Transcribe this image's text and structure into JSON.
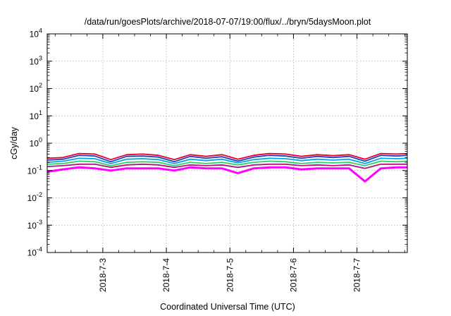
{
  "chart_data": {
    "type": "line",
    "title": "/data/run/goesPlots/archive/2018-07-07/19:00/flux/../bryn/5daysMoon.plot",
    "xlabel": "Coordinated Universal Time (UTC)",
    "ylabel": "cGy/day",
    "y_scale": "log",
    "ylim": [
      0.0001,
      10000
    ],
    "xlim": [
      "2018-07-02T03:00",
      "2018-07-07T19:00"
    ],
    "grid": true,
    "legend": "none",
    "x_ticks": [
      "2018-7-3",
      "2018-7-4",
      "2018-7-5",
      "2018-7-6",
      "2018-7-7"
    ],
    "y_ticks": [
      {
        "value": 0.0001,
        "base": "10",
        "exp": "-4"
      },
      {
        "value": 0.001,
        "base": "10",
        "exp": "-3"
      },
      {
        "value": 0.01,
        "base": "10",
        "exp": "-2"
      },
      {
        "value": 0.1,
        "base": "10",
        "exp": "-1"
      },
      {
        "value": 1,
        "base": "10",
        "exp": "0"
      },
      {
        "value": 10,
        "base": "10",
        "exp": "1"
      },
      {
        "value": 100,
        "base": "10",
        "exp": "2"
      },
      {
        "value": 1000,
        "base": "10",
        "exp": "3"
      },
      {
        "value": 10000,
        "base": "10",
        "exp": "4"
      }
    ],
    "x": [
      "2018-07-02T03:00",
      "2018-07-02T09:00",
      "2018-07-02T15:00",
      "2018-07-02T21:00",
      "2018-07-03T03:00",
      "2018-07-03T09:00",
      "2018-07-03T15:00",
      "2018-07-03T21:00",
      "2018-07-04T03:00",
      "2018-07-04T09:00",
      "2018-07-04T15:00",
      "2018-07-04T21:00",
      "2018-07-05T03:00",
      "2018-07-05T09:00",
      "2018-07-05T15:00",
      "2018-07-05T21:00",
      "2018-07-06T03:00",
      "2018-07-06T09:00",
      "2018-07-06T15:00",
      "2018-07-06T21:00",
      "2018-07-07T03:00",
      "2018-07-07T09:00",
      "2018-07-07T15:00",
      "2018-07-07T19:00"
    ],
    "series": [
      {
        "color": "#e4002b",
        "values": [
          0.28,
          0.3,
          0.42,
          0.4,
          0.25,
          0.38,
          0.4,
          0.36,
          0.25,
          0.38,
          0.33,
          0.38,
          0.26,
          0.36,
          0.42,
          0.4,
          0.33,
          0.38,
          0.35,
          0.38,
          0.26,
          0.42,
          0.4,
          0.42
        ]
      },
      {
        "color": "#1f3fb8",
        "values": [
          0.24,
          0.26,
          0.36,
          0.34,
          0.21,
          0.33,
          0.34,
          0.31,
          0.21,
          0.33,
          0.28,
          0.32,
          0.22,
          0.31,
          0.36,
          0.34,
          0.28,
          0.33,
          0.3,
          0.33,
          0.22,
          0.36,
          0.34,
          0.36
        ]
      },
      {
        "color": "#00a6e6",
        "values": [
          0.2,
          0.22,
          0.28,
          0.27,
          0.18,
          0.26,
          0.27,
          0.25,
          0.18,
          0.26,
          0.23,
          0.26,
          0.19,
          0.25,
          0.28,
          0.27,
          0.23,
          0.26,
          0.24,
          0.26,
          0.18,
          0.28,
          0.27,
          0.28
        ]
      },
      {
        "color": "#33cc66",
        "values": [
          0.17,
          0.18,
          0.22,
          0.21,
          0.15,
          0.2,
          0.21,
          0.2,
          0.15,
          0.2,
          0.18,
          0.2,
          0.16,
          0.2,
          0.22,
          0.21,
          0.18,
          0.2,
          0.19,
          0.2,
          0.15,
          0.22,
          0.21,
          0.22
        ]
      },
      {
        "color": "#b0137e",
        "values": [
          0.14,
          0.15,
          0.17,
          0.17,
          0.13,
          0.16,
          0.17,
          0.16,
          0.13,
          0.16,
          0.15,
          0.16,
          0.13,
          0.16,
          0.17,
          0.17,
          0.15,
          0.16,
          0.15,
          0.16,
          0.12,
          0.17,
          0.17,
          0.17
        ]
      },
      {
        "color": "#ff00ff",
        "values": [
          0.09,
          0.11,
          0.13,
          0.12,
          0.1,
          0.12,
          0.12,
          0.12,
          0.1,
          0.13,
          0.12,
          0.12,
          0.08,
          0.12,
          0.13,
          0.13,
          0.11,
          0.12,
          0.12,
          0.12,
          0.04,
          0.12,
          0.13,
          0.13
        ]
      }
    ]
  }
}
